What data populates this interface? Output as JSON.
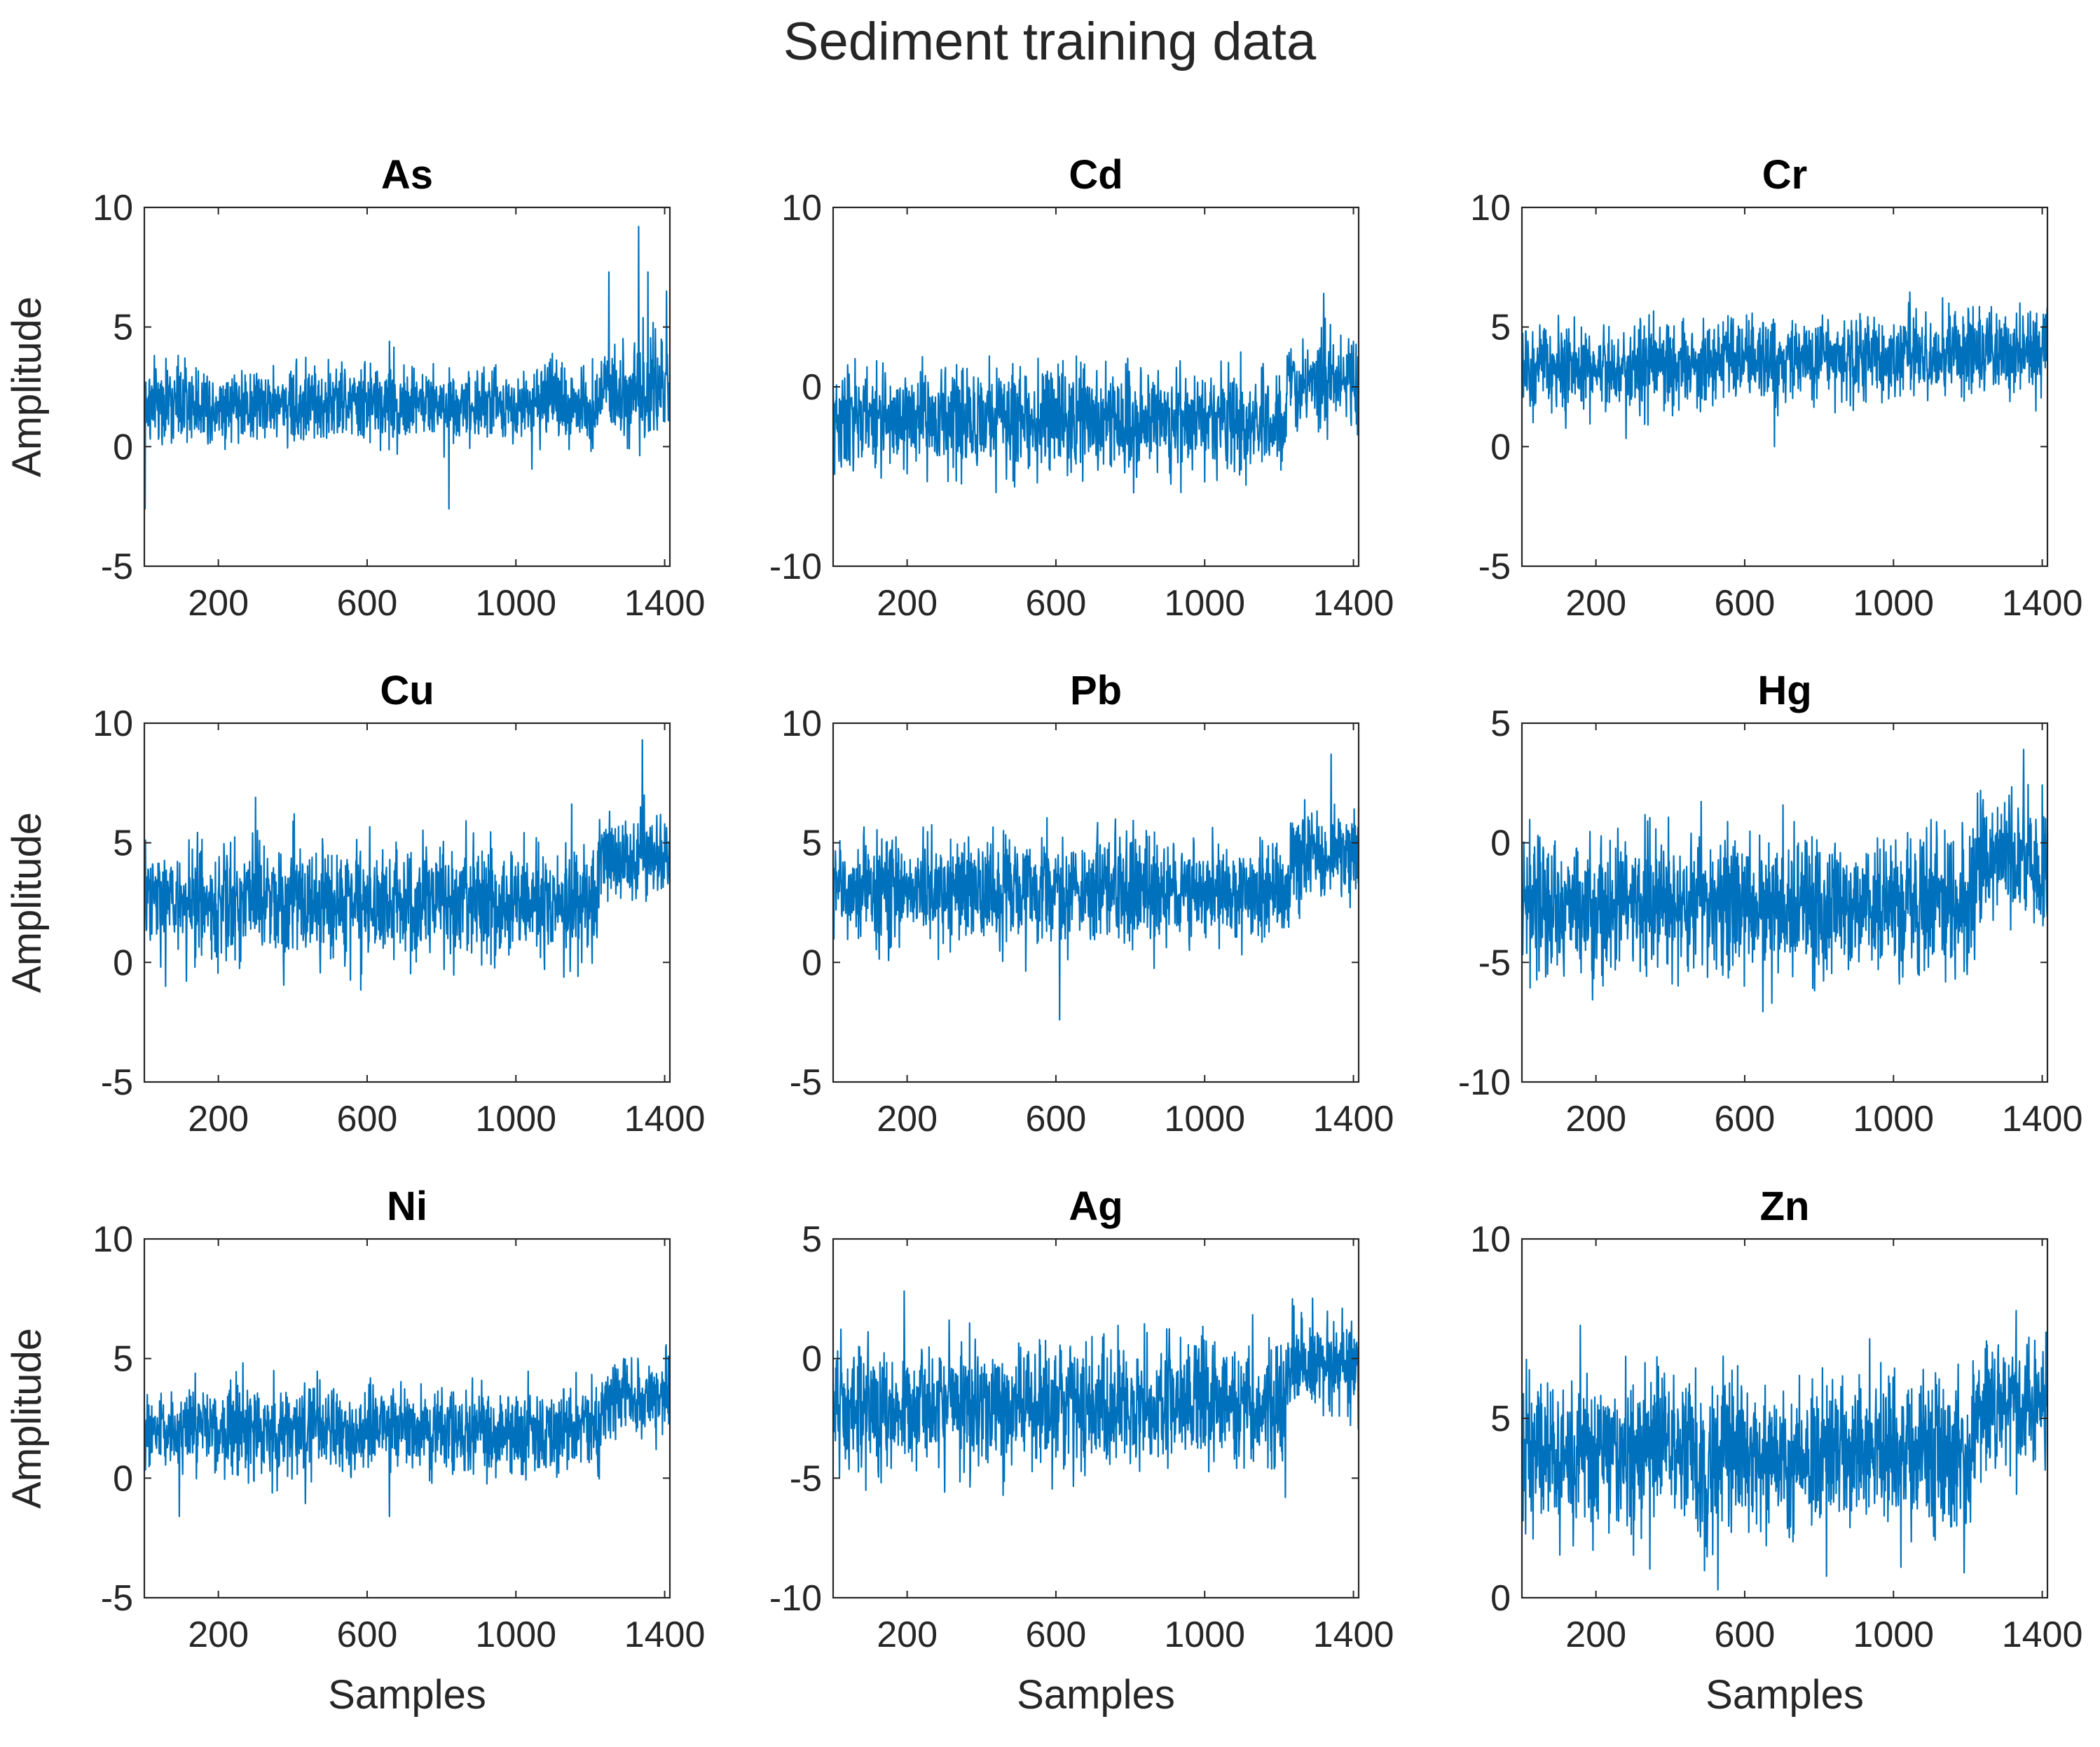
{
  "chart_data": {
    "type": "line",
    "title": "Sediment training data",
    "xlabel": "Samples",
    "ylabel": "Amplitude",
    "grid": false,
    "line_color": "#0072BD",
    "axis_color": "#262626",
    "xlim": [
      1,
      1414
    ],
    "xticks": [
      200,
      600,
      1000,
      1400
    ],
    "panels": [
      {
        "name": "As",
        "ylim": [
          -5,
          10
        ],
        "yticks": [
          -5,
          0,
          5,
          10
        ],
        "base": 1.8,
        "noise": 0.8,
        "shift_at": 1230,
        "shift_base": 2.3,
        "shift_noise": 1.0,
        "spikes": [
          [
            3,
            -2.6
          ],
          [
            820,
            -2.6
          ],
          [
            660,
            4.4
          ],
          [
            1250,
            7.3
          ],
          [
            1330,
            9.2
          ],
          [
            1355,
            7.3
          ],
          [
            1405,
            6.5
          ]
        ]
      },
      {
        "name": "Cd",
        "ylim": [
          -10,
          10
        ],
        "yticks": [
          -10,
          0,
          10
        ],
        "base": -1.8,
        "noise": 1.4,
        "shift_at": 1220,
        "shift_base": 0.1,
        "shift_noise": 1.2,
        "spikes": [
          [
            1320,
            5.2
          ]
        ]
      },
      {
        "name": "Cr",
        "ylim": [
          -5,
          10
        ],
        "yticks": [
          -5,
          0,
          5,
          10
        ],
        "base": 3.2,
        "noise": 0.9,
        "shift_at": 1400,
        "shift_base": 3.8,
        "shift_noise": 0.9,
        "trend": 0.8,
        "spikes": [
          [
            680,
            0.0
          ],
          [
            1340,
            6.0
          ]
        ]
      },
      {
        "name": "Cu",
        "ylim": [
          -5,
          10
        ],
        "yticks": [
          -5,
          0,
          5,
          10
        ],
        "base": 2.5,
        "noise": 1.2,
        "shift_at": 1220,
        "shift_base": 4.4,
        "shift_noise": 0.9,
        "spikes": [
          [
            1340,
            9.3
          ],
          [
            300,
            6.9
          ]
        ]
      },
      {
        "name": "Pb",
        "ylim": [
          -5,
          10
        ],
        "yticks": [
          -5,
          0,
          5,
          10
        ],
        "base": 3.0,
        "noise": 1.1,
        "shift_at": 1230,
        "shift_base": 4.5,
        "shift_noise": 1.0,
        "spikes": [
          [
            610,
            -2.4
          ],
          [
            1340,
            8.7
          ]
        ]
      },
      {
        "name": "Hg",
        "ylim": [
          -10,
          5
        ],
        "yticks": [
          -10,
          -5,
          0,
          5
        ],
        "base": -2.6,
        "noise": 1.4,
        "shift_at": 1220,
        "shift_base": -0.8,
        "shift_noise": 1.3,
        "spikes": [
          [
            1350,
            3.9
          ]
        ]
      },
      {
        "name": "Ni",
        "ylim": [
          -5,
          10
        ],
        "yticks": [
          -5,
          0,
          5,
          10
        ],
        "base": 2.0,
        "noise": 0.9,
        "shift_at": 1230,
        "shift_base": 3.3,
        "shift_noise": 0.7,
        "spikes": [
          [
            95,
            -1.6
          ],
          [
            660,
            -1.6
          ],
          [
            1290,
            5.0
          ],
          [
            1410,
            5.1
          ]
        ]
      },
      {
        "name": "Ag",
        "ylim": [
          -10,
          5
        ],
        "yticks": [
          -10,
          -5,
          0,
          5
        ],
        "base": -2.0,
        "noise": 1.3,
        "shift_at": 1220,
        "shift_base": -0.4,
        "shift_noise": 0.9,
        "spikes": [
          [
            1240,
            2.2
          ],
          [
            1370,
            2.1
          ]
        ]
      },
      {
        "name": "Zn",
        "ylim": [
          0,
          10
        ],
        "yticks": [
          0,
          5,
          10
        ],
        "base": 4.0,
        "noise": 1.1,
        "shift_at": 1220,
        "shift_base": 5.4,
        "shift_noise": 0.9,
        "spikes": [
          [
            345,
            0.8
          ],
          [
            820,
            0.6
          ],
          [
            1190,
            0.7
          ],
          [
            1330,
            8.0
          ],
          [
            1410,
            7.4
          ]
        ]
      }
    ]
  }
}
